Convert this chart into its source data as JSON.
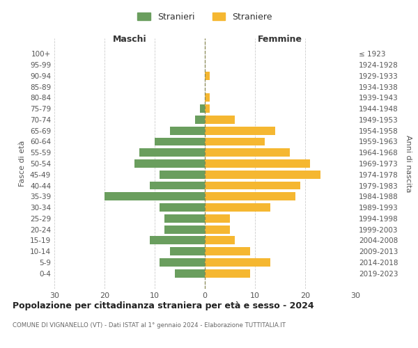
{
  "age_groups": [
    "100+",
    "95-99",
    "90-94",
    "85-89",
    "80-84",
    "75-79",
    "70-74",
    "65-69",
    "60-64",
    "55-59",
    "50-54",
    "45-49",
    "40-44",
    "35-39",
    "30-34",
    "25-29",
    "20-24",
    "15-19",
    "10-14",
    "5-9",
    "0-4"
  ],
  "birth_years": [
    "≤ 1923",
    "1924-1928",
    "1929-1933",
    "1934-1938",
    "1939-1943",
    "1944-1948",
    "1949-1953",
    "1954-1958",
    "1959-1963",
    "1964-1968",
    "1969-1973",
    "1974-1978",
    "1979-1983",
    "1984-1988",
    "1989-1993",
    "1994-1998",
    "1999-2003",
    "2004-2008",
    "2009-2013",
    "2014-2018",
    "2019-2023"
  ],
  "maschi": [
    0,
    0,
    0,
    0,
    0,
    1,
    2,
    7,
    10,
    13,
    14,
    9,
    11,
    20,
    9,
    8,
    8,
    11,
    7,
    9,
    6
  ],
  "femmine": [
    0,
    0,
    1,
    0,
    1,
    1,
    6,
    14,
    12,
    17,
    21,
    23,
    19,
    18,
    13,
    5,
    5,
    6,
    9,
    13,
    9
  ],
  "color_maschi": "#6a9e5e",
  "color_femmine": "#f5b731",
  "title": "Popolazione per cittadinanza straniera per età e sesso - 2024",
  "subtitle": "COMUNE DI VIGNANELLO (VT) - Dati ISTAT al 1° gennaio 2024 - Elaborazione TUTTITALIA.IT",
  "label_maschi": "Stranieri",
  "label_femmine": "Straniere",
  "xlabel_left": "Maschi",
  "xlabel_right": "Femmine",
  "ylabel_left": "Fasce di età",
  "ylabel_right": "Anni di nascita",
  "xlim": 30,
  "bg_color": "#ffffff",
  "grid_color": "#cccccc",
  "grid_linestyle": "--",
  "tick_color": "#888888",
  "label_color": "#555555"
}
